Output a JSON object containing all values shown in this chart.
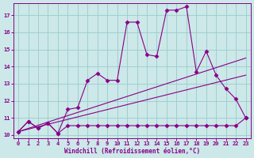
{
  "background_color": "#cce8e8",
  "grid_color": "#99cccc",
  "line_color": "#880088",
  "marker": "D",
  "marker_size": 2.5,
  "xlabel": "Windchill (Refroidissement éolien,°C)",
  "xlabel_color": "#880088",
  "tick_color": "#880088",
  "xlim": [
    -0.5,
    23.5
  ],
  "ylim": [
    9.8,
    17.7
  ],
  "yticks": [
    10,
    11,
    12,
    13,
    14,
    15,
    16,
    17
  ],
  "xticks": [
    0,
    1,
    2,
    3,
    4,
    5,
    6,
    7,
    8,
    9,
    10,
    11,
    12,
    13,
    14,
    15,
    16,
    17,
    18,
    19,
    20,
    21,
    22,
    23
  ],
  "line1_x": [
    0,
    1,
    2,
    3,
    4,
    5,
    6,
    7,
    8,
    9,
    10,
    11,
    12,
    13,
    14,
    15,
    16,
    17,
    18,
    19,
    20,
    21,
    22,
    23
  ],
  "line1_y": [
    10.2,
    10.8,
    10.4,
    10.7,
    10.1,
    11.5,
    11.6,
    13.2,
    13.6,
    13.2,
    13.2,
    16.6,
    16.6,
    14.7,
    14.6,
    17.3,
    17.3,
    17.5,
    13.7,
    14.9,
    13.5,
    12.7,
    12.1,
    11.0
  ],
  "line2_x": [
    0,
    1,
    2,
    3,
    4,
    5,
    6,
    7,
    8,
    9,
    10,
    11,
    12,
    13,
    14,
    15,
    16,
    17,
    18,
    19,
    20,
    21,
    22,
    23
  ],
  "line2_y": [
    10.2,
    10.8,
    10.4,
    10.7,
    10.1,
    10.55,
    10.55,
    10.55,
    10.55,
    10.55,
    10.55,
    10.55,
    10.55,
    10.55,
    10.55,
    10.55,
    10.55,
    10.55,
    10.55,
    10.55,
    10.55,
    10.55,
    10.55,
    11.0
  ],
  "line3_x": [
    0,
    23
  ],
  "line3_y": [
    10.2,
    14.5
  ],
  "line4_x": [
    0,
    23
  ],
  "line4_y": [
    10.2,
    13.5
  ]
}
